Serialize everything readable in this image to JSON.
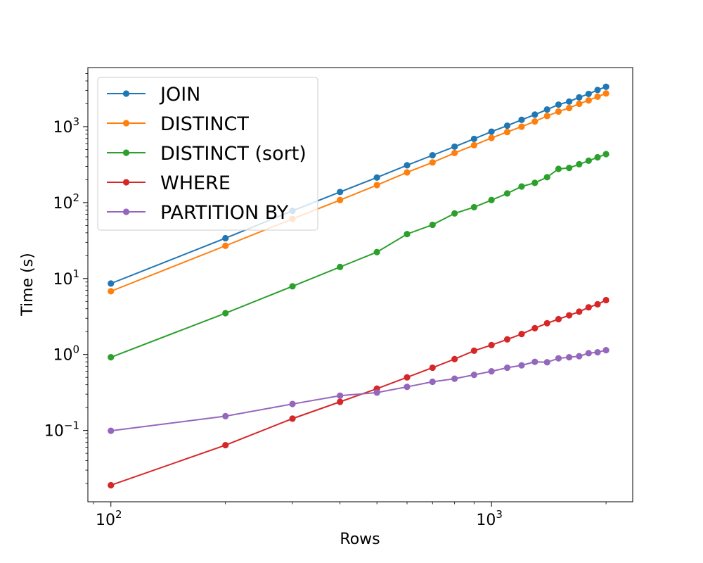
{
  "chart_data": {
    "type": "line",
    "title": "",
    "xlabel": "Rows",
    "ylabel": "Time (s)",
    "xscale": "log",
    "yscale": "log",
    "xlim": [
      87,
      2350
    ],
    "ylim": [
      0.0115,
      6000
    ],
    "x_ticks": [
      {
        "value": 100,
        "base": "10",
        "exp": "2"
      },
      {
        "value": 1000,
        "base": "10",
        "exp": "3"
      }
    ],
    "y_ticks": [
      {
        "value": 0.1,
        "base": "10",
        "exp": "−1"
      },
      {
        "value": 1,
        "base": "10",
        "exp": "0"
      },
      {
        "value": 10,
        "base": "10",
        "exp": "1"
      },
      {
        "value": 100,
        "base": "10",
        "exp": "2"
      },
      {
        "value": 1000,
        "base": "10",
        "exp": "3"
      }
    ],
    "grid": false,
    "legend_position": "upper-left",
    "x": [
      100,
      200,
      300,
      400,
      500,
      600,
      700,
      800,
      900,
      1000,
      1100,
      1200,
      1300,
      1400,
      1500,
      1600,
      1700,
      1800,
      1900,
      2000
    ],
    "series": [
      {
        "name": "JOIN",
        "color": "#1f77b4",
        "values": [
          8.6,
          34,
          78,
          138,
          214,
          310,
          420,
          545,
          690,
          860,
          1030,
          1230,
          1440,
          1680,
          1950,
          2140,
          2430,
          2700,
          3040,
          3350
        ]
      },
      {
        "name": "DISTINCT",
        "color": "#ff7f0e",
        "values": [
          6.8,
          27,
          61,
          108,
          170,
          250,
          338,
          450,
          570,
          710,
          850,
          1000,
          1170,
          1380,
          1580,
          1760,
          2000,
          2220,
          2480,
          2740
        ]
      },
      {
        "name": "DISTINCT (sort)",
        "color": "#2ca02c",
        "values": [
          0.92,
          3.5,
          7.9,
          14.2,
          22.3,
          38.5,
          51,
          72,
          87,
          108,
          132,
          163,
          182,
          216,
          278,
          286,
          320,
          356,
          395,
          435
        ]
      },
      {
        "name": "WHERE",
        "color": "#d62728",
        "values": [
          0.019,
          0.064,
          0.143,
          0.238,
          0.355,
          0.5,
          0.67,
          0.87,
          1.12,
          1.33,
          1.58,
          1.86,
          2.22,
          2.58,
          2.92,
          3.28,
          3.66,
          4.18,
          4.58,
          5.2
        ]
      },
      {
        "name": "PARTITION BY",
        "color": "#9467bd",
        "values": [
          0.099,
          0.154,
          0.223,
          0.287,
          0.315,
          0.375,
          0.437,
          0.48,
          0.54,
          0.6,
          0.67,
          0.72,
          0.8,
          0.79,
          0.89,
          0.92,
          0.95,
          1.04,
          1.07,
          1.14
        ]
      }
    ]
  }
}
